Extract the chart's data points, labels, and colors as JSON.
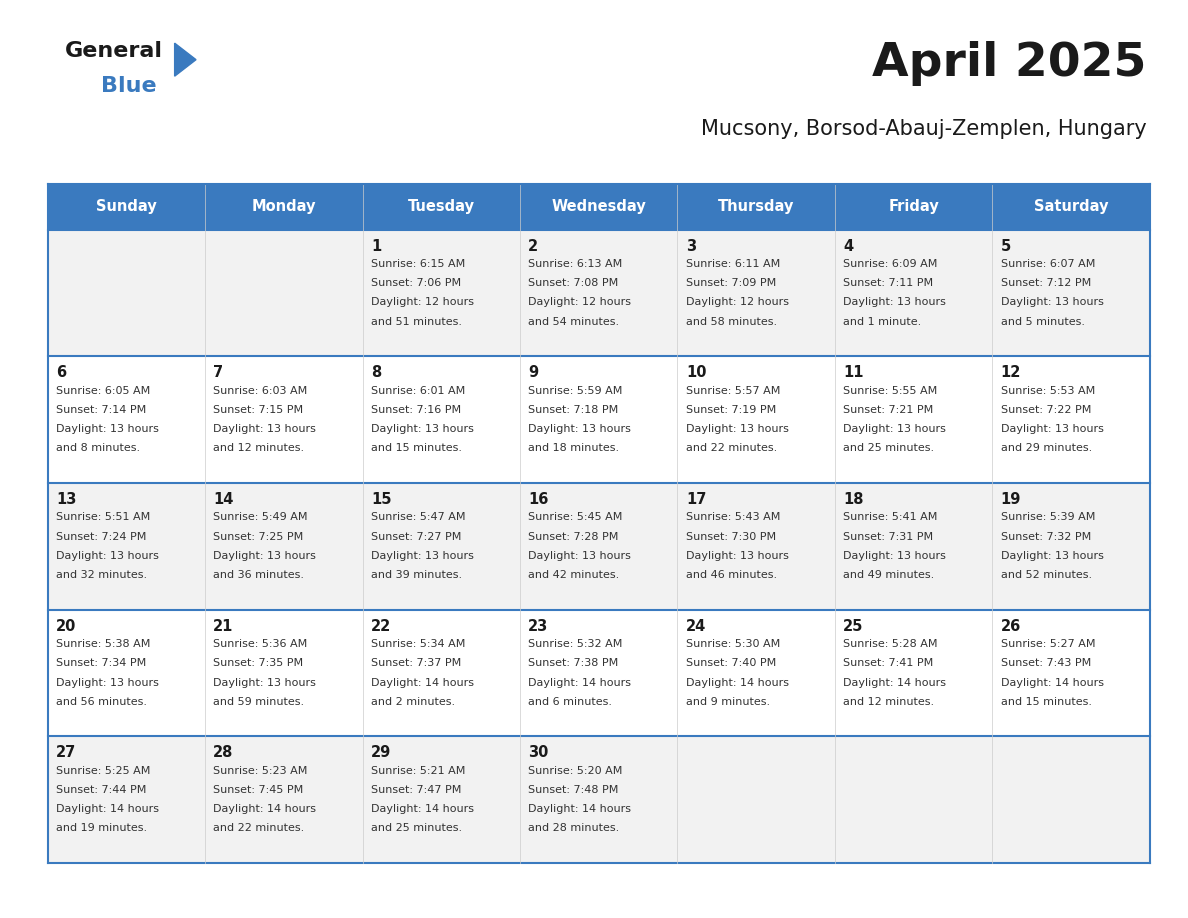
{
  "title": "April 2025",
  "subtitle": "Mucsony, Borsod-Abauj-Zemplen, Hungary",
  "header_bg": "#3a7abf",
  "header_text": "#ffffff",
  "cell_border": "#3a7abf",
  "row_bg_light": "#f2f2f2",
  "row_bg_white": "#ffffff",
  "text_dark": "#1a1a1a",
  "text_gray": "#333333",
  "day_headers": [
    "Sunday",
    "Monday",
    "Tuesday",
    "Wednesday",
    "Thursday",
    "Friday",
    "Saturday"
  ],
  "days": [
    {
      "day": 1,
      "col": 2,
      "row": 0,
      "sunrise": "6:15 AM",
      "sunset": "7:06 PM",
      "daylight": "12 hours and 51 minutes."
    },
    {
      "day": 2,
      "col": 3,
      "row": 0,
      "sunrise": "6:13 AM",
      "sunset": "7:08 PM",
      "daylight": "12 hours and 54 minutes."
    },
    {
      "day": 3,
      "col": 4,
      "row": 0,
      "sunrise": "6:11 AM",
      "sunset": "7:09 PM",
      "daylight": "12 hours and 58 minutes."
    },
    {
      "day": 4,
      "col": 5,
      "row": 0,
      "sunrise": "6:09 AM",
      "sunset": "7:11 PM",
      "daylight": "13 hours and 1 minute."
    },
    {
      "day": 5,
      "col": 6,
      "row": 0,
      "sunrise": "6:07 AM",
      "sunset": "7:12 PM",
      "daylight": "13 hours and 5 minutes."
    },
    {
      "day": 6,
      "col": 0,
      "row": 1,
      "sunrise": "6:05 AM",
      "sunset": "7:14 PM",
      "daylight": "13 hours and 8 minutes."
    },
    {
      "day": 7,
      "col": 1,
      "row": 1,
      "sunrise": "6:03 AM",
      "sunset": "7:15 PM",
      "daylight": "13 hours and 12 minutes."
    },
    {
      "day": 8,
      "col": 2,
      "row": 1,
      "sunrise": "6:01 AM",
      "sunset": "7:16 PM",
      "daylight": "13 hours and 15 minutes."
    },
    {
      "day": 9,
      "col": 3,
      "row": 1,
      "sunrise": "5:59 AM",
      "sunset": "7:18 PM",
      "daylight": "13 hours and 18 minutes."
    },
    {
      "day": 10,
      "col": 4,
      "row": 1,
      "sunrise": "5:57 AM",
      "sunset": "7:19 PM",
      "daylight": "13 hours and 22 minutes."
    },
    {
      "day": 11,
      "col": 5,
      "row": 1,
      "sunrise": "5:55 AM",
      "sunset": "7:21 PM",
      "daylight": "13 hours and 25 minutes."
    },
    {
      "day": 12,
      "col": 6,
      "row": 1,
      "sunrise": "5:53 AM",
      "sunset": "7:22 PM",
      "daylight": "13 hours and 29 minutes."
    },
    {
      "day": 13,
      "col": 0,
      "row": 2,
      "sunrise": "5:51 AM",
      "sunset": "7:24 PM",
      "daylight": "13 hours and 32 minutes."
    },
    {
      "day": 14,
      "col": 1,
      "row": 2,
      "sunrise": "5:49 AM",
      "sunset": "7:25 PM",
      "daylight": "13 hours and 36 minutes."
    },
    {
      "day": 15,
      "col": 2,
      "row": 2,
      "sunrise": "5:47 AM",
      "sunset": "7:27 PM",
      "daylight": "13 hours and 39 minutes."
    },
    {
      "day": 16,
      "col": 3,
      "row": 2,
      "sunrise": "5:45 AM",
      "sunset": "7:28 PM",
      "daylight": "13 hours and 42 minutes."
    },
    {
      "day": 17,
      "col": 4,
      "row": 2,
      "sunrise": "5:43 AM",
      "sunset": "7:30 PM",
      "daylight": "13 hours and 46 minutes."
    },
    {
      "day": 18,
      "col": 5,
      "row": 2,
      "sunrise": "5:41 AM",
      "sunset": "7:31 PM",
      "daylight": "13 hours and 49 minutes."
    },
    {
      "day": 19,
      "col": 6,
      "row": 2,
      "sunrise": "5:39 AM",
      "sunset": "7:32 PM",
      "daylight": "13 hours and 52 minutes."
    },
    {
      "day": 20,
      "col": 0,
      "row": 3,
      "sunrise": "5:38 AM",
      "sunset": "7:34 PM",
      "daylight": "13 hours and 56 minutes."
    },
    {
      "day": 21,
      "col": 1,
      "row": 3,
      "sunrise": "5:36 AM",
      "sunset": "7:35 PM",
      "daylight": "13 hours and 59 minutes."
    },
    {
      "day": 22,
      "col": 2,
      "row": 3,
      "sunrise": "5:34 AM",
      "sunset": "7:37 PM",
      "daylight": "14 hours and 2 minutes."
    },
    {
      "day": 23,
      "col": 3,
      "row": 3,
      "sunrise": "5:32 AM",
      "sunset": "7:38 PM",
      "daylight": "14 hours and 6 minutes."
    },
    {
      "day": 24,
      "col": 4,
      "row": 3,
      "sunrise": "5:30 AM",
      "sunset": "7:40 PM",
      "daylight": "14 hours and 9 minutes."
    },
    {
      "day": 25,
      "col": 5,
      "row": 3,
      "sunrise": "5:28 AM",
      "sunset": "7:41 PM",
      "daylight": "14 hours and 12 minutes."
    },
    {
      "day": 26,
      "col": 6,
      "row": 3,
      "sunrise": "5:27 AM",
      "sunset": "7:43 PM",
      "daylight": "14 hours and 15 minutes."
    },
    {
      "day": 27,
      "col": 0,
      "row": 4,
      "sunrise": "5:25 AM",
      "sunset": "7:44 PM",
      "daylight": "14 hours and 19 minutes."
    },
    {
      "day": 28,
      "col": 1,
      "row": 4,
      "sunrise": "5:23 AM",
      "sunset": "7:45 PM",
      "daylight": "14 hours and 22 minutes."
    },
    {
      "day": 29,
      "col": 2,
      "row": 4,
      "sunrise": "5:21 AM",
      "sunset": "7:47 PM",
      "daylight": "14 hours and 25 minutes."
    },
    {
      "day": 30,
      "col": 3,
      "row": 4,
      "sunrise": "5:20 AM",
      "sunset": "7:48 PM",
      "daylight": "14 hours and 28 minutes."
    }
  ],
  "logo_general_color": "#1a1a1a",
  "logo_blue_color": "#3a7abf",
  "logo_triangle_color": "#3a7abf",
  "title_fontsize": 34,
  "subtitle_fontsize": 15,
  "header_fontsize": 10.5,
  "day_num_fontsize": 10.5,
  "cell_text_fontsize": 8.0
}
